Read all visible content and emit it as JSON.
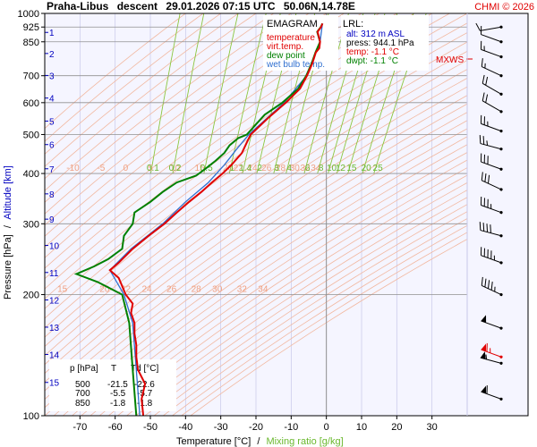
{
  "header": {
    "station": "Praha-Libus",
    "mode": "descent",
    "datetime": "29.01.2026 07:15 UTC",
    "coords": "50.06N,14.78E",
    "copyright": "CHMI © 2026"
  },
  "legend": {
    "title": "EMAGRAM",
    "items": [
      {
        "label": "temperature",
        "color": "#e00000"
      },
      {
        "label": "virt.temp.",
        "color": "#e00000"
      },
      {
        "label": "dew point",
        "color": "#008000"
      },
      {
        "label": "wet bulb temp.",
        "color": "#3070d0"
      }
    ]
  },
  "lrl": {
    "title": "LRL:",
    "alt": "alt: 312 m ASL",
    "press": "press: 944.1 hPa",
    "temp": "temp: -1.1 °C",
    "dwpt": "dwpt: -1.1 °C"
  },
  "axes": {
    "y_label_a": "Pressure [hPa]",
    "y_label_sep": "/",
    "y_label_b": "Altitude [km]",
    "x_label_a": "Temperature [°C]",
    "x_label_sep": "/",
    "x_label_b": "Mixing ratio [g/kg]"
  },
  "table": {
    "headers": [
      "p [hPa]",
      "T",
      "Td [°C]"
    ],
    "rows": [
      [
        "500",
        "-21.5",
        "-22.6"
      ],
      [
        "700",
        "-5.5",
        "-5.7"
      ],
      [
        "850",
        "-1.8",
        "-1.8"
      ]
    ]
  },
  "mxws_label": "MXWS",
  "colors": {
    "temperature": "#e00000",
    "dewpoint": "#008000",
    "wetbulb": "#3070d0",
    "theta": "#f2b8a0",
    "mixing": "#8cc63f",
    "isotherm": "#c8c8e8",
    "plot_bg": "#f5f5ff"
  },
  "chart_data": {
    "type": "line",
    "x_axis": {
      "range": [
        -80,
        40
      ],
      "ticks": [
        -70,
        -60,
        -50,
        -40,
        -30,
        -20,
        -10,
        0,
        10,
        20,
        30
      ],
      "tick_labels": [
        "-70",
        "-60",
        "-50",
        "-40",
        "-30",
        "-20",
        "-10",
        "0",
        "10",
        "20",
        "30"
      ]
    },
    "y_axis": {
      "scale": "log",
      "range_hpa": [
        1000,
        100
      ],
      "ticks": [
        100,
        200,
        300,
        400,
        500,
        600,
        700,
        850,
        925,
        1000
      ],
      "tick_labels": [
        "100",
        "200",
        "300",
        "400",
        "500",
        "600",
        "700",
        "850",
        "925",
        "1000"
      ]
    },
    "altitude_ticks": [
      {
        "km": "1",
        "p": 897
      },
      {
        "km": "2",
        "p": 795
      },
      {
        "km": "3",
        "p": 701
      },
      {
        "km": "4",
        "p": 616
      },
      {
        "km": "5",
        "p": 540
      },
      {
        "km": "6",
        "p": 472
      },
      {
        "km": "7",
        "p": 411
      },
      {
        "km": "8",
        "p": 356
      },
      {
        "km": "9",
        "p": 308
      },
      {
        "km": "10",
        "p": 265
      },
      {
        "km": "11",
        "p": 227
      },
      {
        "km": "12",
        "p": 194
      },
      {
        "km": "13",
        "p": 166
      },
      {
        "km": "14",
        "p": 142
      },
      {
        "km": "15",
        "p": 121
      }
    ],
    "theta_labels_upper": {
      "p": 200,
      "values": [
        "15",
        "20",
        "22",
        "24",
        "26",
        "28",
        "30",
        "32",
        "34"
      ],
      "temps": [
        -75,
        -63,
        -57,
        -51,
        -44,
        -37,
        -31,
        -24,
        -18
      ]
    },
    "theta_labels_lower": {
      "p": 400,
      "values": [
        "-10",
        "-5",
        "0",
        "5",
        "10",
        "15",
        "20",
        "22",
        "24",
        "26",
        "28",
        "30",
        "32",
        "34"
      ],
      "temps": [
        -72,
        -64,
        -57,
        -50,
        -43,
        -36,
        -28,
        -25,
        -21,
        -17,
        -13,
        -9,
        -6,
        -3
      ]
    },
    "mixing_labels": {
      "values": [
        "0.1",
        "0.2",
        "0.5",
        "1",
        "1.4",
        "2",
        "3",
        "4",
        "6",
        "8",
        "10",
        "12",
        "15",
        "20",
        "25"
      ],
      "ratios": [
        0.1,
        0.2,
        0.5,
        1,
        1.4,
        2,
        3,
        4,
        6,
        8,
        10,
        12,
        15,
        20,
        25
      ]
    },
    "series": [
      {
        "name": "temperature",
        "points": [
          [
            100,
            -52
          ],
          [
            110,
            -52.5
          ],
          [
            120,
            -51.5
          ],
          [
            130,
            -53.5
          ],
          [
            140,
            -54
          ],
          [
            150,
            -54
          ],
          [
            160,
            -54.5
          ],
          [
            170,
            -54.5
          ],
          [
            180,
            -55.5
          ],
          [
            190,
            -55
          ],
          [
            200,
            -57
          ],
          [
            210,
            -58
          ],
          [
            220,
            -59
          ],
          [
            230,
            -61.5
          ],
          [
            240,
            -59
          ],
          [
            260,
            -55
          ],
          [
            280,
            -50.5
          ],
          [
            300,
            -46
          ],
          [
            320,
            -42.5
          ],
          [
            340,
            -39
          ],
          [
            360,
            -35.5
          ],
          [
            380,
            -32.5
          ],
          [
            400,
            -29.5
          ],
          [
            420,
            -27
          ],
          [
            450,
            -24
          ],
          [
            480,
            -22.5
          ],
          [
            500,
            -21.5
          ],
          [
            550,
            -16.5
          ],
          [
            600,
            -11.5
          ],
          [
            650,
            -7.5
          ],
          [
            700,
            -5.5
          ],
          [
            750,
            -4
          ],
          [
            800,
            -3
          ],
          [
            820,
            -2
          ],
          [
            850,
            -1.8
          ],
          [
            880,
            -2.2
          ],
          [
            900,
            -2.5
          ],
          [
            925,
            -1.5
          ],
          [
            944,
            -1.1
          ]
        ]
      },
      {
        "name": "dew point",
        "points": [
          [
            100,
            -54
          ],
          [
            130,
            -55
          ],
          [
            170,
            -56
          ],
          [
            200,
            -58
          ],
          [
            215,
            -65
          ],
          [
            225,
            -71
          ],
          [
            235,
            -66
          ],
          [
            245,
            -62
          ],
          [
            260,
            -58
          ],
          [
            280,
            -57.5
          ],
          [
            300,
            -55
          ],
          [
            320,
            -54.5
          ],
          [
            340,
            -50
          ],
          [
            360,
            -46.5
          ],
          [
            380,
            -42.5
          ],
          [
            395,
            -37
          ],
          [
            410,
            -34.5
          ],
          [
            430,
            -31.5
          ],
          [
            450,
            -29
          ],
          [
            470,
            -27.5
          ],
          [
            490,
            -25
          ],
          [
            500,
            -22.6
          ],
          [
            530,
            -20
          ],
          [
            560,
            -17.5
          ],
          [
            600,
            -12.5
          ],
          [
            650,
            -8
          ],
          [
            700,
            -5.7
          ],
          [
            750,
            -4.2
          ],
          [
            800,
            -3.1
          ],
          [
            850,
            -1.8
          ],
          [
            900,
            -2.6
          ],
          [
            925,
            -1.6
          ],
          [
            944,
            -1.1
          ]
        ]
      },
      {
        "name": "wet bulb temp.",
        "points": [
          [
            100,
            -53
          ],
          [
            130,
            -54
          ],
          [
            170,
            -55
          ],
          [
            200,
            -57.5
          ],
          [
            230,
            -61.5
          ],
          [
            260,
            -55.5
          ],
          [
            300,
            -46.5
          ],
          [
            340,
            -40
          ],
          [
            380,
            -33.5
          ],
          [
            420,
            -29
          ],
          [
            460,
            -25.5
          ],
          [
            500,
            -22
          ],
          [
            600,
            -12
          ],
          [
            700,
            -5.6
          ],
          [
            850,
            -1.8
          ],
          [
            944,
            -1.1
          ]
        ]
      }
    ],
    "wind_barbs": [
      {
        "p": 110,
        "dir": 290,
        "kt": 60
      },
      {
        "p": 135,
        "dir": 285,
        "kt": 55
      },
      {
        "p": 165,
        "dir": 290,
        "kt": 50
      },
      {
        "p": 200,
        "dir": 295,
        "kt": 45
      },
      {
        "p": 240,
        "dir": 290,
        "kt": 45
      },
      {
        "p": 280,
        "dir": 285,
        "kt": 40
      },
      {
        "p": 320,
        "dir": 290,
        "kt": 35
      },
      {
        "p": 365,
        "dir": 295,
        "kt": 30
      },
      {
        "p": 410,
        "dir": 290,
        "kt": 30
      },
      {
        "p": 460,
        "dir": 285,
        "kt": 25
      },
      {
        "p": 510,
        "dir": 290,
        "kt": 25
      },
      {
        "p": 570,
        "dir": 300,
        "kt": 20
      },
      {
        "p": 630,
        "dir": 300,
        "kt": 20
      },
      {
        "p": 700,
        "dir": 295,
        "kt": 15
      },
      {
        "p": 780,
        "dir": 290,
        "kt": 15
      },
      {
        "p": 850,
        "dir": 290,
        "kt": 10
      },
      {
        "p": 925,
        "dir": 260,
        "kt": 10
      }
    ],
    "mxws_barb": {
      "p": 140,
      "dir": 290,
      "kt": 65
    }
  }
}
